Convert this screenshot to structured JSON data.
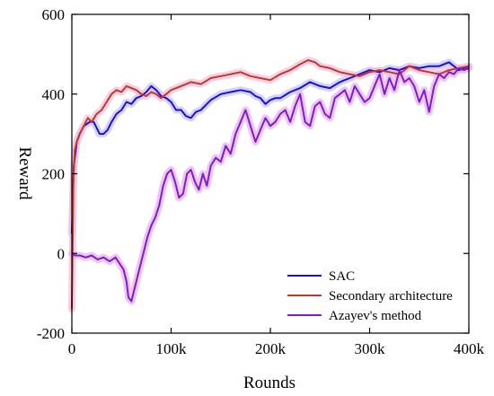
{
  "chart_data": {
    "type": "line",
    "title": "",
    "xlabel": "Rounds",
    "ylabel": "Reward",
    "xlim": [
      0,
      400000
    ],
    "ylim": [
      -200,
      600
    ],
    "grid": false,
    "legend_position": "bottom-right",
    "x_ticks": [
      {
        "value": 0,
        "label": "0"
      },
      {
        "value": 100000,
        "label": "100k"
      },
      {
        "value": 200000,
        "label": "200k"
      },
      {
        "value": 300000,
        "label": "300k"
      },
      {
        "value": 400000,
        "label": "400k"
      }
    ],
    "y_ticks": [
      {
        "value": -200,
        "label": "-200"
      },
      {
        "value": 0,
        "label": "0"
      },
      {
        "value": 200,
        "label": "200"
      },
      {
        "value": 400,
        "label": "400"
      },
      {
        "value": 600,
        "label": "600"
      }
    ],
    "series": [
      {
        "name": "SAC",
        "color": "#1a10d8",
        "band_color": "#c7c4f5",
        "x": [
          0,
          2000,
          5000,
          8000,
          12000,
          18000,
          22000,
          28000,
          32000,
          36000,
          40000,
          45000,
          50000,
          55000,
          60000,
          65000,
          70000,
          75000,
          80000,
          85000,
          90000,
          95000,
          100000,
          105000,
          110000,
          115000,
          120000,
          125000,
          130000,
          140000,
          150000,
          160000,
          170000,
          180000,
          185000,
          190000,
          195000,
          200000,
          205000,
          210000,
          220000,
          230000,
          240000,
          250000,
          260000,
          270000,
          280000,
          290000,
          300000,
          310000,
          320000,
          330000,
          340000,
          350000,
          360000,
          370000,
          380000,
          390000,
          400000
        ],
        "y": [
          50,
          220,
          280,
          300,
          320,
          330,
          330,
          300,
          300,
          310,
          330,
          350,
          360,
          380,
          375,
          390,
          395,
          405,
          420,
          410,
          395,
          390,
          380,
          360,
          360,
          345,
          340,
          355,
          360,
          385,
          400,
          405,
          410,
          405,
          395,
          390,
          375,
          385,
          390,
          390,
          405,
          415,
          430,
          420,
          415,
          430,
          440,
          450,
          460,
          455,
          465,
          460,
          470,
          465,
          470,
          470,
          480,
          460,
          470
        ]
      },
      {
        "name": "Secondary architecture",
        "color": "#c0392b",
        "band_color": "#f6c0dc",
        "x": [
          0,
          1500,
          3000,
          5000,
          8000,
          12000,
          16000,
          20000,
          25000,
          30000,
          35000,
          40000,
          45000,
          50000,
          55000,
          60000,
          65000,
          70000,
          75000,
          80000,
          85000,
          90000,
          95000,
          100000,
          110000,
          120000,
          130000,
          140000,
          150000,
          160000,
          170000,
          180000,
          190000,
          200000,
          210000,
          220000,
          230000,
          238000,
          245000,
          250000,
          260000,
          270000,
          280000,
          290000,
          300000,
          310000,
          320000,
          330000,
          340000,
          350000,
          360000,
          370000,
          380000,
          390000,
          400000
        ],
        "y": [
          -140,
          180,
          260,
          280,
          300,
          320,
          340,
          330,
          350,
          360,
          380,
          400,
          410,
          405,
          420,
          415,
          410,
          400,
          395,
          405,
          400,
          390,
          400,
          410,
          420,
          430,
          425,
          440,
          445,
          450,
          455,
          445,
          440,
          435,
          450,
          460,
          475,
          485,
          480,
          470,
          465,
          455,
          450,
          445,
          455,
          460,
          455,
          450,
          470,
          460,
          455,
          450,
          460,
          465,
          470
        ]
      },
      {
        "name": "Azayev's method",
        "color": "#7b1fc9",
        "band_color": "#eab0f2",
        "x": [
          0,
          3000,
          8000,
          14000,
          20000,
          26000,
          32000,
          38000,
          44000,
          48000,
          52000,
          55000,
          57000,
          60000,
          64000,
          68000,
          72000,
          76000,
          80000,
          84000,
          88000,
          92000,
          96000,
          100000,
          104000,
          108000,
          112000,
          116000,
          120000,
          124000,
          128000,
          132000,
          136000,
          140000,
          145000,
          150000,
          155000,
          160000,
          165000,
          170000,
          175000,
          180000,
          185000,
          190000,
          195000,
          200000,
          205000,
          210000,
          215000,
          220000,
          225000,
          230000,
          235000,
          240000,
          245000,
          250000,
          255000,
          260000,
          265000,
          270000,
          275000,
          280000,
          285000,
          290000,
          295000,
          300000,
          305000,
          310000,
          315000,
          320000,
          325000,
          330000,
          335000,
          340000,
          345000,
          350000,
          355000,
          360000,
          365000,
          370000,
          375000,
          380000,
          385000,
          390000,
          395000,
          400000
        ],
        "y": [
          0,
          -5,
          -5,
          -10,
          -5,
          -15,
          -10,
          -20,
          -10,
          -25,
          -40,
          -70,
          -110,
          -120,
          -80,
          -40,
          0,
          40,
          70,
          90,
          120,
          170,
          200,
          210,
          180,
          140,
          150,
          200,
          210,
          180,
          160,
          200,
          170,
          220,
          240,
          230,
          270,
          250,
          300,
          330,
          360,
          320,
          280,
          310,
          340,
          320,
          330,
          350,
          360,
          330,
          370,
          400,
          330,
          320,
          370,
          380,
          350,
          340,
          390,
          400,
          410,
          380,
          420,
          400,
          380,
          390,
          420,
          450,
          400,
          440,
          410,
          460,
          430,
          440,
          420,
          380,
          410,
          355,
          420,
          450,
          440,
          455,
          450,
          465,
          460,
          465
        ]
      }
    ]
  }
}
